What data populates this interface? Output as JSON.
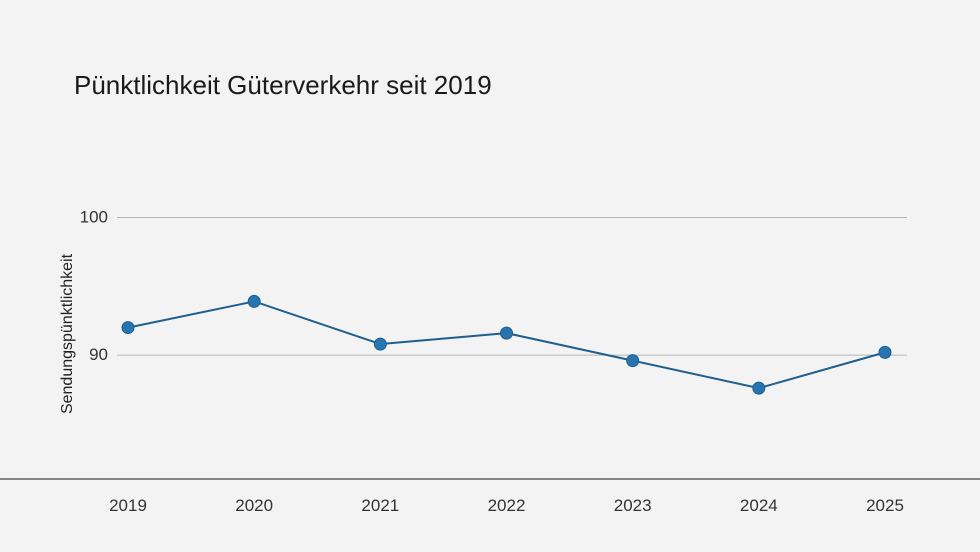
{
  "chart_data": {
    "type": "line",
    "title": "Pünktlichkeit Güterverkehr seit 2019",
    "xlabel": "",
    "ylabel": "Sendungspünktlichkeit",
    "categories": [
      "2019",
      "2020",
      "2021",
      "2022",
      "2023",
      "2024",
      "2025"
    ],
    "series": [
      {
        "values": [
          92.0,
          93.9,
          90.8,
          91.6,
          89.6,
          87.6,
          90.2
        ]
      }
    ],
    "ylim": [
      81.0,
      106.5
    ],
    "yticks": [
      90,
      100
    ],
    "grid": true,
    "legend": "none",
    "colors": {
      "line": "#1e5f8e",
      "marker": "#2775b0",
      "grid": "#b5b5b5",
      "axis": "#444444"
    }
  }
}
